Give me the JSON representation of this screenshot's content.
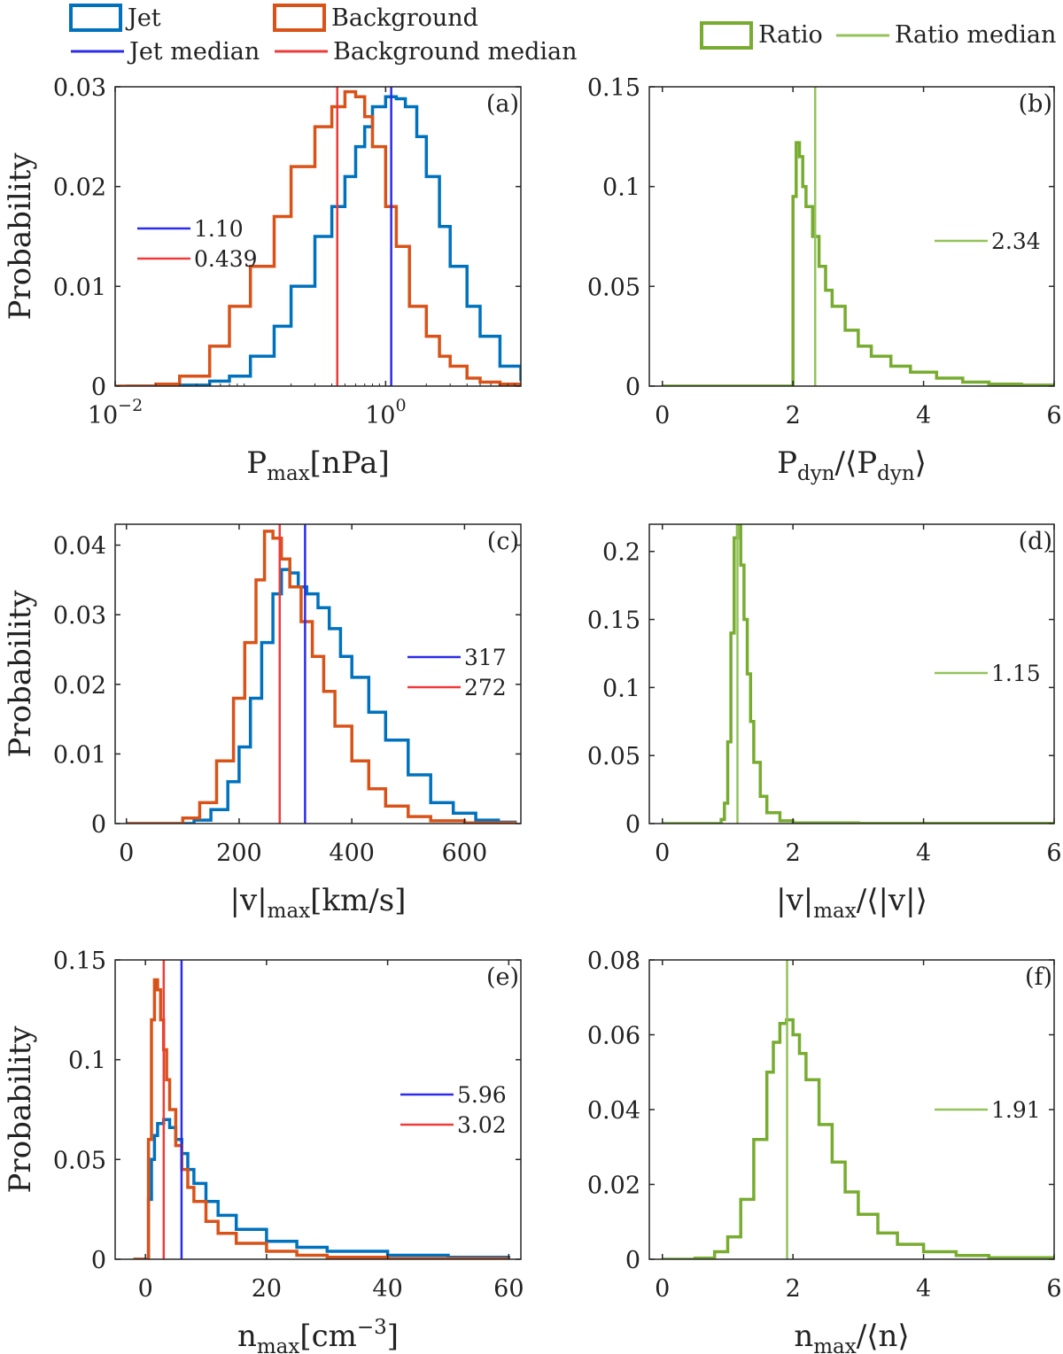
{
  "legend": {
    "jet": "Jet",
    "background": "Background",
    "jet_median": "Jet median",
    "background_median": "Background median",
    "ratio": "Ratio",
    "ratio_median": "Ratio median"
  },
  "colors": {
    "jet": "#0072BD",
    "background": "#D95319",
    "jet_median": "#2B2BEB",
    "background_median": "#F03A3A",
    "ratio": "#77AC30",
    "ratio_median": "#93C35A"
  },
  "chart_data": [
    {
      "id": "a",
      "type": "line",
      "step": true,
      "panel_label": "(a)",
      "xlabel_main": "P",
      "xlabel_sub": "max",
      "xlabel_rest": "[nPa]",
      "ylabel": "Probability",
      "xscale": "log",
      "xlim": [
        0.01,
        10
      ],
      "ylim": [
        0,
        0.03
      ],
      "xticks": [
        0.01,
        1
      ],
      "xtick_base": [
        "10",
        "10"
      ],
      "xtick_exp": [
        "−2",
        "0"
      ],
      "yticks": [
        0,
        0.01,
        0.02,
        0.03
      ],
      "ytick_labels": [
        "0",
        "0.01",
        "0.02",
        "0.03"
      ],
      "series": [
        {
          "name": "Jet",
          "x": [
            0.012,
            0.03,
            0.05,
            0.07,
            0.1,
            0.15,
            0.2,
            0.3,
            0.4,
            0.5,
            0.6,
            0.7,
            0.8,
            1.0,
            1.2,
            1.4,
            1.7,
            2.0,
            2.5,
            3.0,
            4.0,
            5.0,
            7.0,
            10.0
          ],
          "y": [
            0,
            0.0001,
            0.0005,
            0.001,
            0.003,
            0.006,
            0.01,
            0.015,
            0.018,
            0.021,
            0.024,
            0.026,
            0.028,
            0.029,
            0.0288,
            0.028,
            0.025,
            0.021,
            0.016,
            0.012,
            0.008,
            0.005,
            0.002,
            0.0005
          ]
        },
        {
          "name": "Background",
          "x": [
            0.01,
            0.02,
            0.03,
            0.05,
            0.07,
            0.1,
            0.15,
            0.2,
            0.3,
            0.4,
            0.5,
            0.6,
            0.7,
            0.8,
            1.0,
            1.2,
            1.5,
            2.0,
            2.5,
            3.0,
            4.0,
            5.0,
            7.0,
            10.0
          ],
          "y": [
            0,
            0.0002,
            0.001,
            0.004,
            0.008,
            0.012,
            0.017,
            0.022,
            0.026,
            0.028,
            0.0295,
            0.029,
            0.027,
            0.024,
            0.018,
            0.014,
            0.008,
            0.005,
            0.003,
            0.002,
            0.0008,
            0.0004,
            0.0002,
            0
          ]
        }
      ],
      "medians": [
        {
          "name": "Jet median",
          "value": 1.1,
          "label": "1.10"
        },
        {
          "name": "Background median",
          "value": 0.439,
          "label": "0.439"
        }
      ]
    },
    {
      "id": "b",
      "type": "line",
      "step": true,
      "panel_label": "(b)",
      "xlabel_main": "P",
      "xlabel_sub": "dyn",
      "xlabel_rest": "/⟨P",
      "xlabel_sub2": "dyn",
      "xlabel_end": "⟩",
      "ylabel": "",
      "xscale": "linear",
      "xlim": [
        -0.2,
        6
      ],
      "ylim": [
        0,
        0.15
      ],
      "xticks": [
        0,
        2,
        4,
        6
      ],
      "xtick_labels": [
        "0",
        "2",
        "4",
        "6"
      ],
      "yticks": [
        0,
        0.05,
        0.1,
        0.15
      ],
      "ytick_labels": [
        "0",
        "0.05",
        "0.1",
        "0.15"
      ],
      "series": [
        {
          "name": "Ratio",
          "x": [
            0,
            1.5,
            1.95,
            2.0,
            2.05,
            2.1,
            2.15,
            2.2,
            2.3,
            2.4,
            2.5,
            2.6,
            2.8,
            3.0,
            3.2,
            3.5,
            3.8,
            4.2,
            4.6,
            5.0,
            5.5,
            6.0
          ],
          "y": [
            0,
            0,
            0,
            0.095,
            0.122,
            0.115,
            0.1,
            0.09,
            0.075,
            0.06,
            0.048,
            0.04,
            0.028,
            0.02,
            0.015,
            0.01,
            0.007,
            0.004,
            0.002,
            0.001,
            0.0005,
            0.0002
          ]
        }
      ],
      "medians": [
        {
          "name": "Ratio median",
          "value": 2.34,
          "label": "2.34"
        }
      ]
    },
    {
      "id": "c",
      "type": "line",
      "step": true,
      "panel_label": "(c)",
      "xlabel_main": "|v|",
      "xlabel_sub": "max",
      "xlabel_rest": "[km/s]",
      "ylabel": "Probability",
      "xscale": "linear",
      "xlim": [
        -20,
        700
      ],
      "ylim": [
        0,
        0.043
      ],
      "xticks": [
        0,
        200,
        400,
        600
      ],
      "xtick_labels": [
        "0",
        "200",
        "400",
        "600"
      ],
      "yticks": [
        0,
        0.01,
        0.02,
        0.03,
        0.04
      ],
      "ytick_labels": [
        "0",
        "0.01",
        "0.02",
        "0.03",
        "0.04"
      ],
      "series": [
        {
          "name": "Jet",
          "x": [
            0,
            80,
            120,
            150,
            180,
            200,
            220,
            240,
            260,
            275,
            290,
            305,
            320,
            340,
            360,
            380,
            400,
            430,
            460,
            500,
            540,
            580,
            620,
            660,
            690
          ],
          "y": [
            0,
            0,
            0.0005,
            0.002,
            0.006,
            0.011,
            0.018,
            0.026,
            0.033,
            0.0365,
            0.036,
            0.034,
            0.033,
            0.031,
            0.028,
            0.024,
            0.021,
            0.016,
            0.012,
            0.007,
            0.003,
            0.0015,
            0.0005,
            0.0002,
            0
          ]
        },
        {
          "name": "Background",
          "x": [
            0,
            70,
            100,
            130,
            160,
            190,
            210,
            230,
            245,
            260,
            275,
            290,
            310,
            330,
            350,
            370,
            400,
            430,
            460,
            500,
            540,
            600,
            690
          ],
          "y": [
            0,
            0,
            0.0008,
            0.003,
            0.009,
            0.018,
            0.026,
            0.035,
            0.042,
            0.041,
            0.038,
            0.034,
            0.029,
            0.024,
            0.019,
            0.014,
            0.009,
            0.005,
            0.0025,
            0.001,
            0.0004,
            0.0001,
            0
          ]
        }
      ],
      "medians": [
        {
          "name": "Jet median",
          "value": 317,
          "label": "317"
        },
        {
          "name": "Background median",
          "value": 272,
          "label": "272"
        }
      ]
    },
    {
      "id": "d",
      "type": "line",
      "step": true,
      "panel_label": "(d)",
      "xlabel_main": "|v|",
      "xlabel_sub": "max",
      "xlabel_rest": "/⟨|v|⟩",
      "ylabel": "",
      "xscale": "linear",
      "xlim": [
        -0.2,
        6
      ],
      "ylim": [
        0,
        0.22
      ],
      "xticks": [
        0,
        2,
        4,
        6
      ],
      "xtick_labels": [
        "0",
        "2",
        "4",
        "6"
      ],
      "yticks": [
        0,
        0.05,
        0.1,
        0.15,
        0.2
      ],
      "ytick_labels": [
        "0",
        "0.05",
        "0.1",
        "0.15",
        "0.2"
      ],
      "series": [
        {
          "name": "Ratio",
          "x": [
            0,
            0.8,
            0.9,
            0.95,
            1.0,
            1.05,
            1.1,
            1.15,
            1.2,
            1.25,
            1.3,
            1.35,
            1.4,
            1.5,
            1.6,
            1.8,
            2.0,
            3.0,
            6.0
          ],
          "y": [
            0,
            0,
            0.003,
            0.015,
            0.06,
            0.14,
            0.21,
            0.22,
            0.19,
            0.15,
            0.11,
            0.075,
            0.045,
            0.02,
            0.008,
            0.002,
            0.0005,
            0.0001,
            0
          ]
        }
      ],
      "medians": [
        {
          "name": "Ratio median",
          "value": 1.15,
          "label": "1.15"
        }
      ]
    },
    {
      "id": "e",
      "type": "line",
      "step": true,
      "panel_label": "(e)",
      "xlabel_main": "n",
      "xlabel_sub": "max",
      "xlabel_rest": "[cm",
      "xlabel_sup": "−3",
      "xlabel_end": "]",
      "ylabel": "Probability",
      "xscale": "linear",
      "xlim": [
        -5,
        62
      ],
      "ylim": [
        0,
        0.15
      ],
      "xticks": [
        0,
        20,
        40,
        60
      ],
      "xtick_labels": [
        "0",
        "20",
        "40",
        "60"
      ],
      "yticks": [
        0,
        0.05,
        0.1,
        0.15
      ],
      "ytick_labels": [
        "0",
        "0.05",
        "0.1",
        "0.15"
      ],
      "series": [
        {
          "name": "Jet",
          "x": [
            -2,
            0,
            0.5,
            1,
            1.5,
            2,
            3,
            4,
            5,
            6,
            7,
            8,
            10,
            12,
            15,
            20,
            25,
            30,
            40,
            50,
            60
          ],
          "y": [
            0,
            0,
            0.03,
            0.05,
            0.062,
            0.068,
            0.07,
            0.066,
            0.06,
            0.053,
            0.045,
            0.038,
            0.029,
            0.022,
            0.015,
            0.009,
            0.006,
            0.004,
            0.002,
            0.001,
            0.0005
          ]
        },
        {
          "name": "Background",
          "x": [
            -2,
            0,
            0.5,
            1,
            1.5,
            2,
            2.5,
            3,
            3.5,
            4,
            5,
            6,
            7,
            8,
            10,
            12,
            15,
            20,
            25,
            30,
            40,
            60
          ],
          "y": [
            0,
            0,
            0.06,
            0.12,
            0.14,
            0.135,
            0.12,
            0.105,
            0.09,
            0.075,
            0.057,
            0.045,
            0.036,
            0.029,
            0.019,
            0.013,
            0.008,
            0.004,
            0.002,
            0.001,
            0.0003,
            0
          ]
        }
      ],
      "medians": [
        {
          "name": "Jet median",
          "value": 5.96,
          "label": "5.96"
        },
        {
          "name": "Background median",
          "value": 3.02,
          "label": "3.02"
        }
      ]
    },
    {
      "id": "f",
      "type": "line",
      "step": true,
      "panel_label": "(f)",
      "xlabel_main": "n",
      "xlabel_sub": "max",
      "xlabel_rest": "/⟨n⟩",
      "ylabel": "",
      "xscale": "linear",
      "xlim": [
        -0.2,
        6
      ],
      "ylim": [
        0,
        0.08
      ],
      "xticks": [
        0,
        2,
        4,
        6
      ],
      "xtick_labels": [
        "0",
        "2",
        "4",
        "6"
      ],
      "yticks": [
        0,
        0.02,
        0.04,
        0.06,
        0.08
      ],
      "ytick_labels": [
        "0",
        "0.02",
        "0.04",
        "0.06",
        "0.08"
      ],
      "series": [
        {
          "name": "Ratio",
          "x": [
            0,
            0.5,
            0.8,
            1.0,
            1.2,
            1.4,
            1.6,
            1.7,
            1.8,
            1.9,
            2.0,
            2.1,
            2.2,
            2.4,
            2.6,
            2.8,
            3.0,
            3.3,
            3.6,
            4.0,
            4.5,
            5.0,
            6.0
          ],
          "y": [
            0,
            0.0003,
            0.002,
            0.006,
            0.016,
            0.032,
            0.05,
            0.058,
            0.063,
            0.064,
            0.06,
            0.055,
            0.048,
            0.036,
            0.026,
            0.018,
            0.012,
            0.007,
            0.004,
            0.002,
            0.001,
            0.0004,
            0.0001
          ]
        }
      ],
      "medians": [
        {
          "name": "Ratio median",
          "value": 1.91,
          "label": "1.91"
        }
      ]
    }
  ]
}
